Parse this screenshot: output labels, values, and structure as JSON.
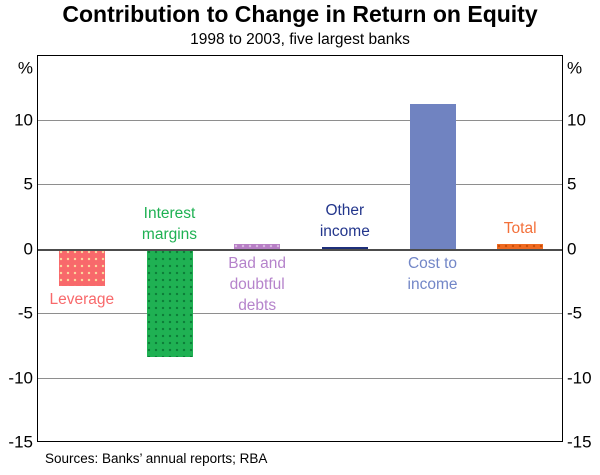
{
  "page": {
    "title": "Contribution to Change in Return on Equity",
    "subtitle": "1998 to 2003, five largest banks",
    "source_note": "Sources: Banks’ annual reports; RBA"
  },
  "chart_data": {
    "type": "bar",
    "title": "Contribution to Change in Return on Equity",
    "subtitle": "1998 to 2003, five largest banks",
    "xlabel": "",
    "ylabel": "%",
    "unit_label": "%",
    "ylim": [
      -15,
      15
    ],
    "grid": true,
    "gridline_values": [
      10,
      5,
      0,
      -5,
      -10
    ],
    "axis_ticks": [
      {
        "label": "%",
        "value": 14
      },
      {
        "label": "10",
        "value": 10
      },
      {
        "label": "5",
        "value": 5
      },
      {
        "label": "0",
        "value": 0
      },
      {
        "label": "-5",
        "value": -5
      },
      {
        "label": "-10",
        "value": -10
      },
      {
        "label": "-15",
        "value": -15
      }
    ],
    "categories": [
      "Leverage",
      "Interest margins",
      "Bad and doubtful debts",
      "Other income",
      "Cost to income",
      "Total"
    ],
    "values": [
      -2.8,
      -8.3,
      0.4,
      0.2,
      11.3,
      0.4
    ],
    "bars": [
      {
        "name": "Leverage",
        "value": -2.8,
        "color": "#f8696b",
        "dot_color": "#fbd9a0",
        "label_lines": [
          "Leverage"
        ],
        "label_color": "#f8696b",
        "label_position": "below"
      },
      {
        "name": "Interest margins",
        "value": -8.3,
        "color": "#1fb153",
        "dot_color": "#0c7d38",
        "label_lines": [
          "Interest",
          "margins"
        ],
        "label_color": "#1fb153",
        "label_position": "above"
      },
      {
        "name": "Bad and doubtful debts",
        "value": 0.4,
        "color": "#b77fc5",
        "dot_color": "#d9b8e2",
        "label_lines": [
          "Bad and",
          "doubtful",
          "debts"
        ],
        "label_color": "#b583cb",
        "label_position": "below"
      },
      {
        "name": "Other income",
        "value": 0.2,
        "color": "#1e2f7a",
        "dot_color": "",
        "label_lines": [
          "Other",
          "income"
        ],
        "label_color": "#23368c",
        "label_position": "above"
      },
      {
        "name": "Cost to income",
        "value": 11.3,
        "color": "#7083c1",
        "dot_color": "",
        "label_lines": [
          "Cost to",
          "income"
        ],
        "label_color": "#7286c7",
        "label_position": "below"
      },
      {
        "name": "Total",
        "value": 0.4,
        "color": "#ef6a21",
        "dot_color": "#c94e08",
        "label_lines": [
          "Total"
        ],
        "label_color": "#f3703a",
        "label_position": "above"
      }
    ],
    "legend": null,
    "source_note": "Sources: Banks’ annual reports; RBA",
    "colors": {
      "frame": "#000000",
      "gridline": "#8e8e8e",
      "zero_line": "#4c4c4c",
      "text": "#000000"
    }
  }
}
